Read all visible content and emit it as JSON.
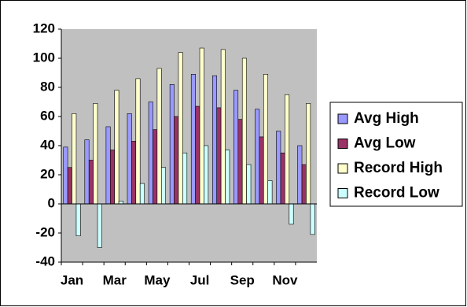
{
  "chart_data": {
    "type": "bar",
    "categories": [
      "Jan",
      null,
      "Mar",
      null,
      "May",
      null,
      "Jul",
      null,
      "Sep",
      null,
      "Nov",
      null
    ],
    "series": [
      {
        "name": "Avg High",
        "color": "#9999ff",
        "values": [
          39,
          44,
          53,
          62,
          70,
          82,
          89,
          88,
          78,
          65,
          50,
          40
        ]
      },
      {
        "name": "Avg Low",
        "color": "#993366",
        "values": [
          25,
          30,
          37,
          43,
          51,
          60,
          67,
          66,
          58,
          46,
          35,
          27
        ]
      },
      {
        "name": "Record High",
        "color": "#ffffcc",
        "values": [
          62,
          69,
          78,
          86,
          93,
          104,
          107,
          106,
          100,
          89,
          75,
          69
        ]
      },
      {
        "name": "Record Low",
        "color": "#ccffff",
        "values": [
          -22,
          -30,
          2,
          14,
          25,
          35,
          40,
          37,
          27,
          16,
          -14,
          -21
        ]
      }
    ],
    "ylim": [
      -40,
      120
    ],
    "yticks": [
      -40,
      -20,
      0,
      20,
      40,
      60,
      80,
      100,
      120
    ],
    "grid": false,
    "legend": "right"
  }
}
